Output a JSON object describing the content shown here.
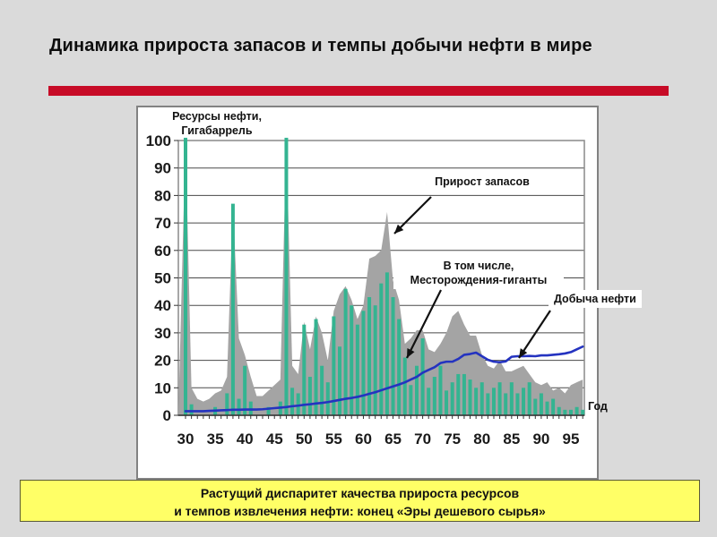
{
  "slide": {
    "title": "Динамика приростa запасов и темпы добычи нефти в мире",
    "accent_bar_color": "#c70b27",
    "background_color": "#dadada",
    "footer": {
      "line1": "Растущий диспаритет качества прироста ресурсов",
      "line2": "и темпов извлечения нефти: конец «Эры дешевого сырья»",
      "bg_color": "#ffff66"
    }
  },
  "chart_data": {
    "type": "combo (area + bar + line)",
    "title": "",
    "y_axis_title_line1": "Ресурсы нефти,",
    "y_axis_title_line2": "Гигабаррель",
    "x_axis_title": "Год",
    "x": [
      30,
      31,
      32,
      33,
      34,
      35,
      36,
      37,
      38,
      39,
      40,
      41,
      42,
      43,
      44,
      45,
      46,
      47,
      48,
      49,
      50,
      51,
      52,
      53,
      54,
      55,
      56,
      57,
      58,
      59,
      60,
      61,
      62,
      63,
      64,
      65,
      66,
      67,
      68,
      69,
      70,
      71,
      72,
      73,
      74,
      75,
      76,
      77,
      78,
      79,
      80,
      81,
      82,
      83,
      84,
      85,
      86,
      87,
      88,
      89,
      90,
      91,
      92,
      93,
      94,
      95,
      96,
      97
    ],
    "x_ticks": [
      30,
      35,
      40,
      45,
      50,
      55,
      60,
      65,
      70,
      75,
      80,
      85,
      90,
      95
    ],
    "y_ticks": [
      0,
      10,
      20,
      30,
      40,
      50,
      60,
      70,
      80,
      90,
      100
    ],
    "ylim": [
      0,
      102
    ],
    "grid": "horizontal",
    "legend_position": "annotations with arrows inside plot",
    "series": [
      {
        "name": "Прирост запасов",
        "type": "area",
        "color": "#a4a4a4",
        "values": [
          101,
          10,
          6,
          5,
          6,
          8,
          9,
          14,
          77,
          28,
          22,
          14,
          7,
          7,
          9,
          11,
          13,
          101,
          18,
          15,
          34,
          24,
          36,
          30,
          20,
          38,
          44,
          47,
          42,
          35,
          40,
          57,
          58,
          60,
          74,
          49,
          42,
          26,
          28,
          31,
          31,
          24,
          23,
          26,
          30,
          36,
          38,
          33,
          29,
          29,
          22,
          18,
          17,
          20,
          16,
          16,
          17,
          18,
          15,
          12,
          11,
          12,
          9,
          10,
          8,
          11,
          12,
          13
        ]
      },
      {
        "name": "В том числе, Месторождения-гиганты",
        "type": "bar",
        "color": "#34b491",
        "values": [
          101,
          4,
          0,
          0,
          0,
          3,
          0,
          8,
          77,
          6,
          18,
          5,
          0,
          0,
          3,
          0,
          5,
          101,
          10,
          8,
          33,
          14,
          35,
          18,
          12,
          36,
          25,
          46,
          40,
          33,
          38,
          43,
          40,
          48,
          52,
          43,
          35,
          21,
          11,
          18,
          28,
          10,
          14,
          18,
          9,
          12,
          15,
          15,
          13,
          10,
          12,
          8,
          10,
          12,
          8,
          12,
          8,
          10,
          12,
          6,
          8,
          5,
          6,
          3,
          2,
          2,
          3,
          2
        ]
      },
      {
        "name": "Добыча нефти",
        "type": "line",
        "color": "#2433c0",
        "values": [
          1.5,
          1.5,
          1.5,
          1.5,
          1.6,
          1.7,
          1.8,
          1.9,
          2.0,
          2.0,
          2.1,
          2.1,
          2.1,
          2.2,
          2.4,
          2.6,
          2.8,
          3.0,
          3.3,
          3.5,
          3.8,
          4.0,
          4.3,
          4.5,
          4.8,
          5.2,
          5.6,
          6.0,
          6.3,
          6.7,
          7.2,
          7.8,
          8.4,
          9.1,
          9.8,
          10.5,
          11.2,
          12.0,
          13.0,
          14.0,
          15.5,
          16.5,
          17.5,
          19.0,
          19.5,
          19.5,
          20.5,
          22.0,
          22.3,
          22.8,
          21.5,
          20.2,
          19.5,
          19.3,
          19.6,
          21.3,
          21.5,
          21.5,
          21.6,
          21.5,
          21.8,
          21.8,
          22.0,
          22.2,
          22.5,
          23.0,
          24.0,
          25.0
        ]
      }
    ],
    "annotations": [
      {
        "label": "Прирост запасов",
        "target": {
          "year": 64,
          "value": 74
        }
      },
      {
        "line1": "В том числе,",
        "line2": "Месторождения-гиганты",
        "target": {
          "year": 67,
          "value": 21
        }
      },
      {
        "label": "Добыча нефти",
        "target": {
          "year": 86,
          "value": 21
        }
      }
    ]
  }
}
